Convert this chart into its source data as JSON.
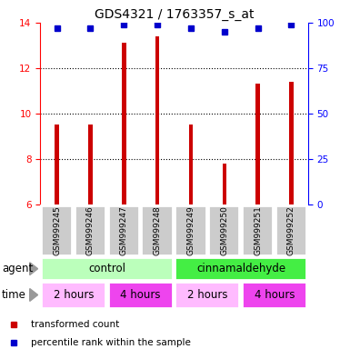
{
  "title": "GDS4321 / 1763357_s_at",
  "samples": [
    "GSM999245",
    "GSM999246",
    "GSM999247",
    "GSM999248",
    "GSM999249",
    "GSM999250",
    "GSM999251",
    "GSM999252"
  ],
  "transformed_counts": [
    9.5,
    9.5,
    13.1,
    13.4,
    9.5,
    7.8,
    11.3,
    11.4
  ],
  "percentile_ranks": [
    97,
    97,
    99,
    99,
    97,
    95,
    97,
    99
  ],
  "bar_color": "#cc0000",
  "dot_color": "#0000cc",
  "ylim_left": [
    6,
    14
  ],
  "ylim_right": [
    0,
    100
  ],
  "yticks_left": [
    6,
    8,
    10,
    12,
    14
  ],
  "yticks_right": [
    0,
    25,
    50,
    75,
    100
  ],
  "agent_groups": [
    {
      "label": "control",
      "start": 0,
      "end": 3,
      "color": "#bbffbb"
    },
    {
      "label": "cinnamaldehyde",
      "start": 4,
      "end": 7,
      "color": "#44ee44"
    }
  ],
  "time_groups": [
    {
      "label": "2 hours",
      "start": 0,
      "end": 1,
      "color": "#ffbbff"
    },
    {
      "label": "4 hours",
      "start": 2,
      "end": 3,
      "color": "#ee44ee"
    },
    {
      "label": "2 hours",
      "start": 4,
      "end": 5,
      "color": "#ffbbff"
    },
    {
      "label": "4 hours",
      "start": 6,
      "end": 7,
      "color": "#ee44ee"
    }
  ],
  "legend_bar_label": "transformed count",
  "legend_dot_label": "percentile rank within the sample",
  "sample_box_color": "#cccccc",
  "bar_width": 0.12
}
